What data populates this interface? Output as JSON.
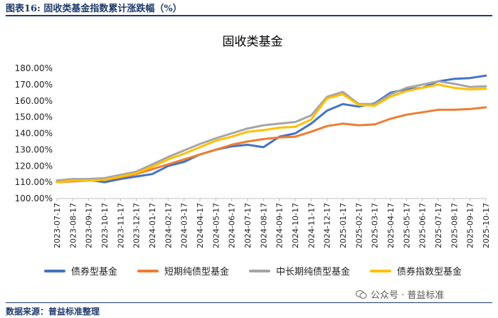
{
  "header": {
    "figure_title": "图表16:  固收类基金指数累计涨跌幅（%）"
  },
  "footer": {
    "source": "数据来源：普益标准整理",
    "watermark": "公众号 · 普益标准"
  },
  "colors": {
    "title": "#1f3a6b"
  },
  "chart_data": {
    "type": "line",
    "title": "固收类基金",
    "xlabel": "",
    "ylabel": "",
    "ylim": [
      100,
      180
    ],
    "yticks": [
      "180.00%",
      "170.00%",
      "160.00%",
      "150.00%",
      "140.00%",
      "130.00%",
      "120.00%",
      "110.00%",
      "100.00%"
    ],
    "ytick_values": [
      180,
      170,
      160,
      150,
      140,
      130,
      120,
      110,
      100
    ],
    "grid": false,
    "legend_position": "bottom",
    "categories": [
      "2023-07-17",
      "2023-08-17",
      "2023-09-17",
      "2023-10-17",
      "2023-11-17",
      "2023-12-17",
      "2024-01-17",
      "2024-02-17",
      "2024-03-17",
      "2024-04-17",
      "2024-05-17",
      "2024-06-17",
      "2024-07-17",
      "2024-08-17",
      "2024-09-17",
      "2024-10-17",
      "2024-11-17",
      "2024-12-17",
      "2025-01-17",
      "2025-02-17",
      "2025-03-17",
      "2025-04-17",
      "2025-05-17",
      "2025-06-17",
      "2025-07-17",
      "2025-08-17",
      "2025-09-17",
      "2025-10-17"
    ],
    "series": [
      {
        "name": "债券型基金",
        "color": "#4472c4",
        "values": [
          110.5,
          111,
          111.5,
          110,
          112,
          113.5,
          115,
          120,
          122.5,
          127,
          130,
          132,
          133,
          131.5,
          138,
          140,
          146,
          154,
          158,
          156.5,
          158.5,
          165,
          167,
          168,
          172,
          173.5,
          174,
          175.5
        ]
      },
      {
        "name": "短期纯债型基金",
        "color": "#ed7d31",
        "values": [
          110,
          110.5,
          111,
          111.5,
          113,
          115,
          118,
          121,
          124,
          127,
          130,
          133,
          135,
          136.5,
          137.5,
          138,
          141,
          144.5,
          146,
          145,
          145.5,
          149,
          151.5,
          153,
          154.5,
          154.5,
          155,
          156
        ]
      },
      {
        "name": "中长期纯债型基金",
        "color": "#a5a5a5",
        "values": [
          111,
          112,
          112,
          112.5,
          114.5,
          116.5,
          121,
          125.5,
          129.5,
          133.5,
          137,
          140,
          143,
          145,
          146,
          147,
          151,
          162.5,
          165.5,
          158,
          158,
          164,
          168,
          170,
          172,
          170.5,
          168.5,
          169
        ]
      },
      {
        "name": "债券指数型基金",
        "color": "#ffc000",
        "values": [
          110,
          111,
          111,
          111.5,
          113.5,
          115.5,
          119.5,
          124,
          127.5,
          131.5,
          135.5,
          138,
          141,
          142,
          143.5,
          144,
          148.5,
          161.5,
          164,
          157.5,
          157,
          162.5,
          166,
          168,
          170,
          168,
          167,
          167.5
        ]
      }
    ]
  }
}
